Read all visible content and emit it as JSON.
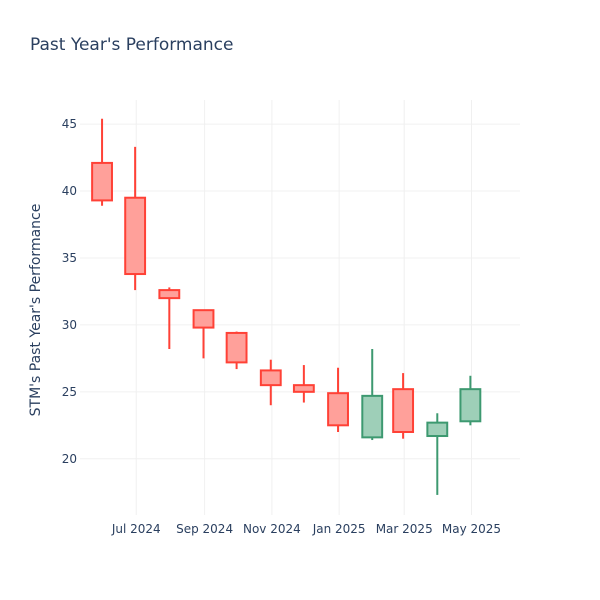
{
  "chart_data": {
    "type": "candlestick",
    "title": "Past Year's Performance",
    "xlabel": "",
    "ylabel": "STM's Past Year's Performance",
    "x_tick_labels": [
      {
        "date": "2024-07",
        "label": "Jul 2024"
      },
      {
        "date": "2024-09",
        "label": "Sep 2024"
      },
      {
        "date": "2024-11",
        "label": "Nov 2024"
      },
      {
        "date": "2025-01",
        "label": "Jan 2025"
      },
      {
        "date": "2025-03",
        "label": "Mar 2025"
      },
      {
        "date": "2025-05",
        "label": "May 2025"
      }
    ],
    "y_ticks": [
      20,
      25,
      30,
      35,
      40,
      45
    ],
    "ylim": [
      15.8,
      46.8
    ],
    "xlim": [
      "2024-05-11",
      "2025-06-14"
    ],
    "grid": true,
    "colors": {
      "increasing_line": "#3d9970",
      "increasing_fill": "#9ecfb8",
      "decreasing_line": "#ff4136",
      "decreasing_fill": "#ffa09a",
      "grid": "#f0f0f0",
      "text": "#2a3f5f"
    },
    "candles": [
      {
        "date": "2024-05-31",
        "open": 42.1,
        "high": 45.4,
        "low": 38.9,
        "close": 39.3
      },
      {
        "date": "2024-06-30",
        "open": 39.5,
        "high": 43.3,
        "low": 32.6,
        "close": 33.8
      },
      {
        "date": "2024-07-31",
        "open": 32.6,
        "high": 32.8,
        "low": 28.2,
        "close": 32.0
      },
      {
        "date": "2024-08-31",
        "open": 31.1,
        "high": 31.1,
        "low": 27.5,
        "close": 29.8
      },
      {
        "date": "2024-09-30",
        "open": 29.4,
        "high": 29.5,
        "low": 26.7,
        "close": 27.2
      },
      {
        "date": "2024-10-31",
        "open": 26.6,
        "high": 27.4,
        "low": 24.0,
        "close": 25.5
      },
      {
        "date": "2024-11-30",
        "open": 25.5,
        "high": 27.0,
        "low": 24.2,
        "close": 25.0
      },
      {
        "date": "2024-12-31",
        "open": 24.9,
        "high": 26.8,
        "low": 22.0,
        "close": 22.5
      },
      {
        "date": "2025-01-31",
        "open": 21.6,
        "high": 28.2,
        "low": 21.4,
        "close": 24.7
      },
      {
        "date": "2025-02-28",
        "open": 25.2,
        "high": 26.4,
        "low": 21.5,
        "close": 22.0
      },
      {
        "date": "2025-03-31",
        "open": 21.7,
        "high": 23.4,
        "low": 17.3,
        "close": 22.7
      },
      {
        "date": "2025-04-30",
        "open": 22.8,
        "high": 26.2,
        "low": 22.5,
        "close": 25.2
      }
    ]
  }
}
